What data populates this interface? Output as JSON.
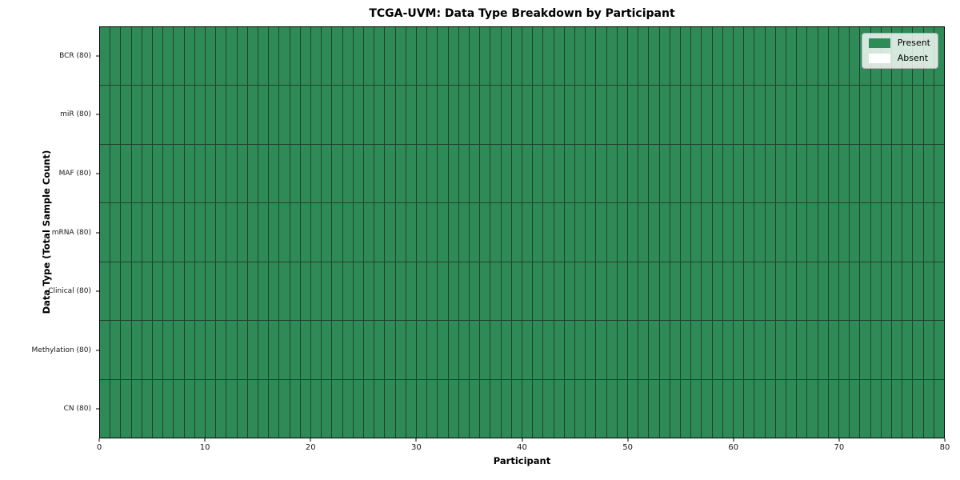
{
  "chart_data": {
    "type": "heatmap",
    "title": "TCGA-UVM: Data Type Breakdown by Participant",
    "xlabel": "Participant",
    "ylabel": "Data Type (Total Sample Count)",
    "x_range": [
      0,
      80
    ],
    "x_ticks": [
      0,
      10,
      20,
      30,
      40,
      50,
      60,
      70,
      80
    ],
    "n_participants": 80,
    "rows": [
      {
        "label": "BCR (80)",
        "present_count": 80,
        "absent_count": 0
      },
      {
        "label": "miR (80)",
        "present_count": 80,
        "absent_count": 0
      },
      {
        "label": "MAF (80)",
        "present_count": 80,
        "absent_count": 0
      },
      {
        "label": "mRNA (80)",
        "present_count": 80,
        "absent_count": 0
      },
      {
        "label": "Clinical (80)",
        "present_count": 80,
        "absent_count": 0
      },
      {
        "label": "Methylation (80)",
        "present_count": 80,
        "absent_count": 0
      },
      {
        "label": "CN (80)",
        "present_count": 80,
        "absent_count": 0
      }
    ],
    "legend": {
      "position": "upper right",
      "entries": [
        {
          "label": "Present",
          "color": "#2e8b57"
        },
        {
          "label": "Absent",
          "color": "#ffffff"
        }
      ]
    },
    "colors": {
      "present": "#2e8b57",
      "absent": "#ffffff",
      "cell_border": "#22412d",
      "axis": "#000000"
    },
    "grid": false,
    "legend_labels": {
      "present": "Present",
      "absent": "Absent"
    }
  }
}
